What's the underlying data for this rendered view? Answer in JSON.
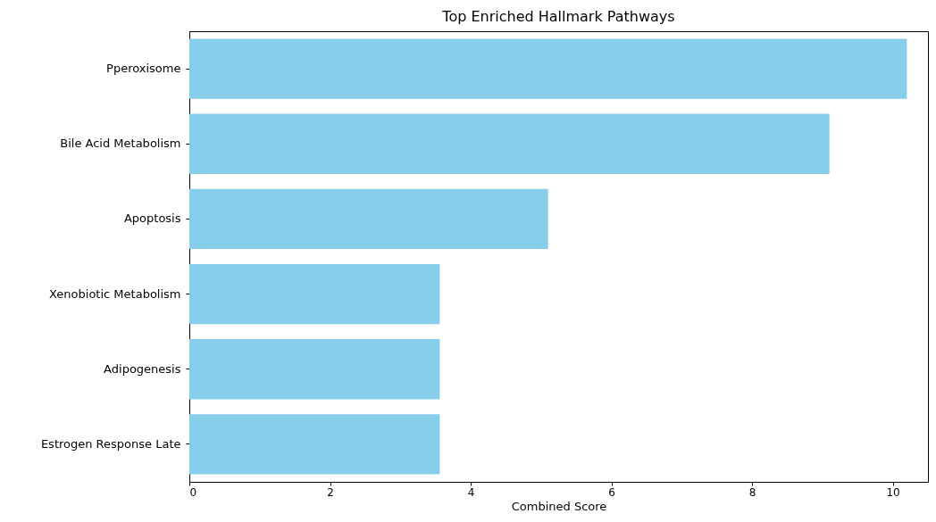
{
  "chart_data": {
    "type": "bar",
    "orientation": "horizontal",
    "title": "Top Enriched Hallmark Pathways",
    "xlabel": "Combined Score",
    "categories": [
      "Pperoxisome",
      "Bile Acid Metabolism",
      "Apoptosis",
      "Xenobiotic Metabolism",
      "Adipogenesis",
      "Estrogen Response Late"
    ],
    "values": [
      10.2,
      9.1,
      5.1,
      3.56,
      3.56,
      3.56
    ],
    "color": "#87ceeb",
    "xlim": [
      0,
      10.5
    ],
    "xticks": [
      0,
      2,
      4,
      6,
      8,
      10
    ],
    "grid": false
  }
}
